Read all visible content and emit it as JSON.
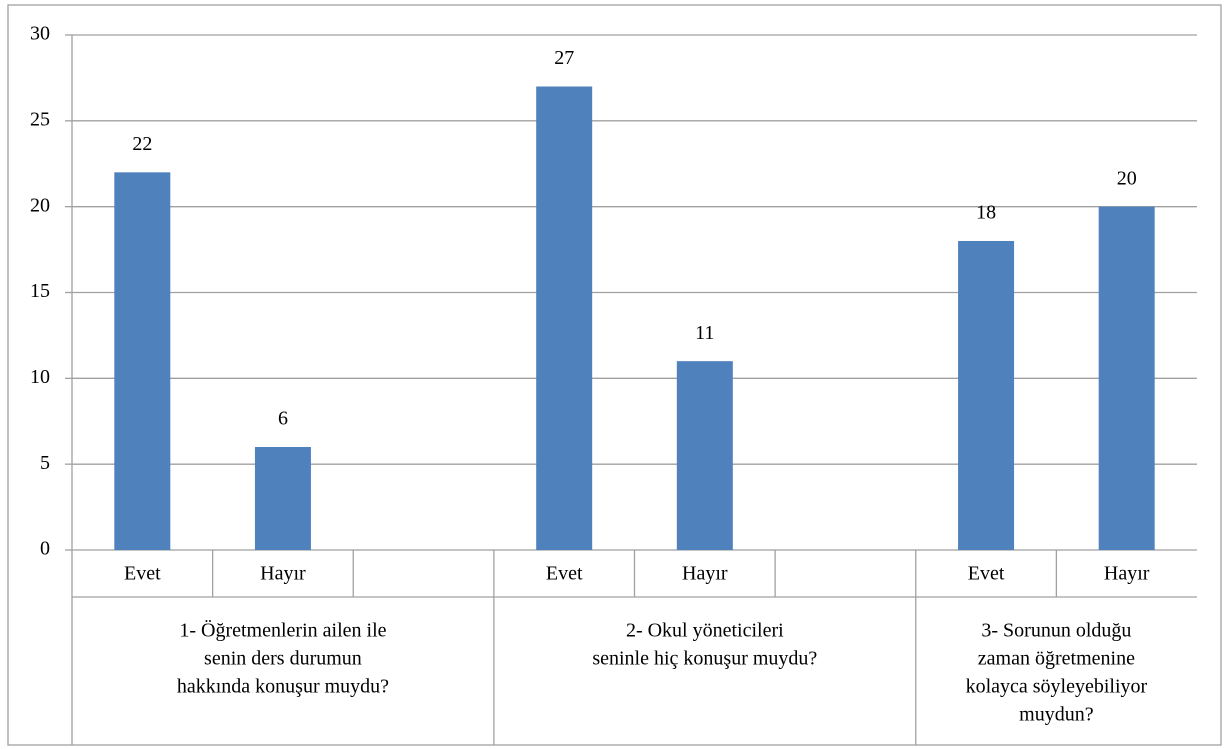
{
  "chart_data": {
    "type": "bar",
    "categories": [
      "Evet",
      "Hayır",
      null,
      "Evet",
      "Hayır",
      null,
      "Evet",
      "Hayır"
    ],
    "values": [
      22,
      6,
      null,
      27,
      11,
      null,
      18,
      20
    ],
    "groups": [
      [
        "1- Öğretmenlerin ailen ile",
        "senin ders durumun",
        "hakkında konuşur muydu?"
      ],
      [
        "2- Okul yöneticileri",
        "seninle hiç konuşur muydu?"
      ],
      [
        "3- Sorunun olduğu",
        "zaman öğretmenine",
        "kolayca söyleyebiliyor",
        "muydun?"
      ]
    ],
    "color": "#4f81bd",
    "ylim": [
      0,
      30
    ],
    "yticks": [
      0,
      5,
      10,
      15,
      20,
      25,
      30
    ],
    "grid": true
  }
}
